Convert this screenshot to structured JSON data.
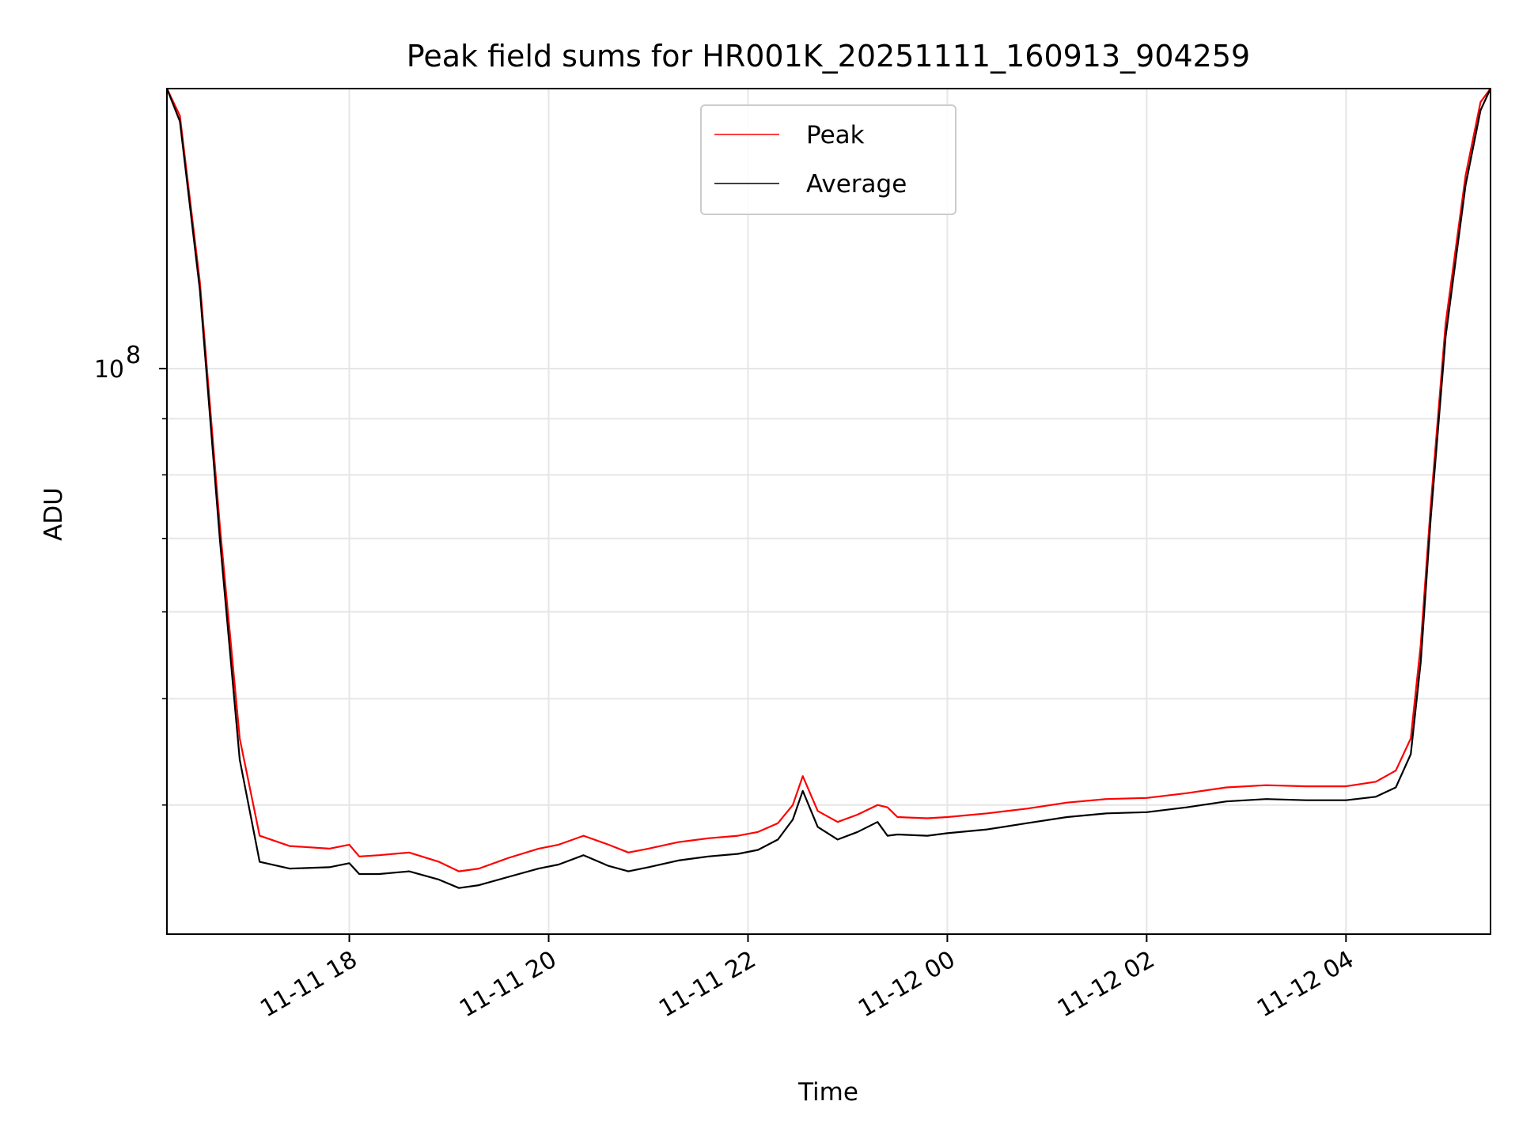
{
  "chart_data": {
    "type": "line",
    "title": "Peak field sums for HR001K_20251111_160913_904259",
    "xlabel": "Time",
    "ylabel": "ADU",
    "yscale": "log",
    "ylim": [
      30500000,
      180000000
    ],
    "xlim_hours": [
      16.17,
      29.45
    ],
    "grid": true,
    "legend_position": "top-center",
    "x_ticks": [
      {
        "hour": 18,
        "label": "11-11 18"
      },
      {
        "hour": 20,
        "label": "11-11 20"
      },
      {
        "hour": 22,
        "label": "11-11 22"
      },
      {
        "hour": 24,
        "label": "11-12 00"
      },
      {
        "hour": 26,
        "label": "11-12 02"
      },
      {
        "hour": 28,
        "label": "11-12 04"
      }
    ],
    "y_major_ticks": [
      {
        "value": 100000000,
        "base": "10",
        "exponent": "8"
      }
    ],
    "y_minor_ticks": [
      40000000,
      50000000,
      60000000,
      70000000,
      80000000,
      90000000,
      200000000
    ],
    "series": [
      {
        "name": "Peak",
        "color": "#ff0000",
        "x_hours": [
          16.17,
          16.3,
          16.5,
          16.7,
          16.9,
          17.1,
          17.4,
          17.8,
          18.0,
          18.1,
          18.3,
          18.6,
          18.9,
          19.1,
          19.3,
          19.6,
          19.9,
          20.1,
          20.35,
          20.6,
          20.8,
          21.0,
          21.3,
          21.6,
          21.9,
          22.1,
          22.3,
          22.45,
          22.55,
          22.7,
          22.9,
          23.1,
          23.3,
          23.4,
          23.5,
          23.8,
          24.0,
          24.4,
          24.8,
          25.2,
          25.6,
          26.0,
          26.4,
          26.8,
          27.2,
          27.6,
          28.0,
          28.3,
          28.5,
          28.65,
          28.75,
          28.85,
          29.0,
          29.2,
          29.35,
          29.45
        ],
        "values": [
          180000000,
          170000000,
          120000000,
          72000000,
          46000000,
          37500000,
          36700000,
          36500000,
          36800000,
          35900000,
          36000000,
          36200000,
          35500000,
          34800000,
          35000000,
          35800000,
          36500000,
          36800000,
          37500000,
          36800000,
          36200000,
          36500000,
          37000000,
          37300000,
          37500000,
          37800000,
          38500000,
          40000000,
          42500000,
          39500000,
          38600000,
          39200000,
          40000000,
          39800000,
          39000000,
          38900000,
          39000000,
          39300000,
          39700000,
          40200000,
          40500000,
          40600000,
          41000000,
          41500000,
          41700000,
          41600000,
          41600000,
          42000000,
          43000000,
          46000000,
          56000000,
          75000000,
          110000000,
          150000000,
          175000000,
          180000000
        ]
      },
      {
        "name": "Average",
        "color": "#000000",
        "x_hours": [
          16.17,
          16.3,
          16.5,
          16.7,
          16.9,
          17.1,
          17.4,
          17.8,
          18.0,
          18.1,
          18.3,
          18.6,
          18.9,
          19.1,
          19.3,
          19.6,
          19.9,
          20.1,
          20.35,
          20.6,
          20.8,
          21.0,
          21.3,
          21.6,
          21.9,
          22.1,
          22.3,
          22.45,
          22.55,
          22.7,
          22.9,
          23.1,
          23.3,
          23.4,
          23.5,
          23.8,
          24.0,
          24.4,
          24.8,
          25.2,
          25.6,
          26.0,
          26.4,
          26.8,
          27.2,
          27.6,
          28.0,
          28.3,
          28.5,
          28.65,
          28.75,
          28.85,
          29.0,
          29.2,
          29.35,
          29.45
        ],
        "values": [
          180000000,
          168000000,
          118000000,
          70000000,
          44000000,
          35500000,
          35000000,
          35100000,
          35400000,
          34600000,
          34600000,
          34800000,
          34200000,
          33600000,
          33800000,
          34400000,
          35000000,
          35300000,
          36000000,
          35200000,
          34800000,
          35100000,
          35600000,
          35900000,
          36100000,
          36400000,
          37200000,
          38800000,
          41200000,
          38200000,
          37200000,
          37800000,
          38600000,
          37500000,
          37600000,
          37500000,
          37700000,
          38000000,
          38500000,
          39000000,
          39300000,
          39400000,
          39800000,
          40300000,
          40500000,
          40400000,
          40400000,
          40700000,
          41500000,
          44500000,
          54000000,
          73000000,
          107000000,
          147000000,
          172000000,
          180000000
        ]
      }
    ]
  }
}
